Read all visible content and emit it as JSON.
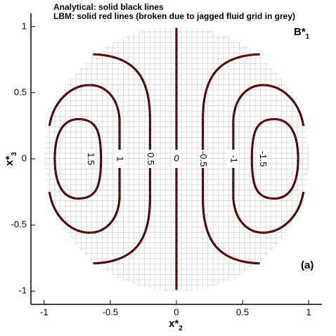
{
  "chart_data": {
    "type": "contour",
    "annotations": [
      "Analytical: solid black lines",
      "LBM: solid red lines (broken due to jagged fluid grid in grey)"
    ],
    "title": {
      "base": "B*",
      "sub": "1"
    },
    "panel_label": "(a)",
    "xlabel": {
      "base": "x*",
      "sub": "2"
    },
    "ylabel": {
      "base": "x*",
      "sub": "3"
    },
    "xlim": [
      -1.1,
      1.1
    ],
    "ylim": [
      -1.1,
      1.1
    ],
    "xticks": [
      -1,
      -0.5,
      0,
      0.5,
      1
    ],
    "yticks": [
      -1,
      -0.5,
      0,
      0.5,
      1
    ],
    "levels": [
      1.5,
      1,
      0.5,
      0,
      -0.5,
      -1,
      -1.5
    ],
    "line_colors": [
      "#000000",
      "#8b0000"
    ],
    "grid_color": "#d0d0d0"
  }
}
